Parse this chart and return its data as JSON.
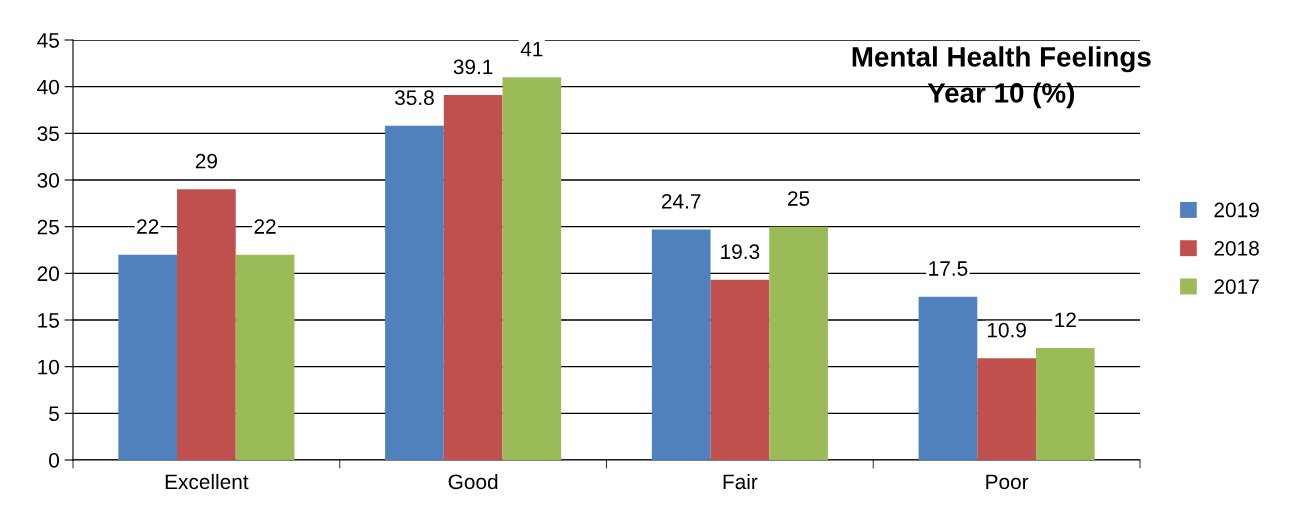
{
  "chart_data": {
    "type": "bar",
    "title": "Mental Health Feelings\nYear 10 (%)",
    "categories": [
      "Excellent",
      "Good",
      "Fair",
      "Poor"
    ],
    "series": [
      {
        "name": "2019",
        "color": "#4f81bd",
        "values": [
          22,
          35.8,
          24.7,
          17.5
        ]
      },
      {
        "name": "2018",
        "color": "#c0504d",
        "values": [
          29,
          39.1,
          19.3,
          10.9
        ]
      },
      {
        "name": "2017",
        "color": "#9bbb59",
        "values": [
          22,
          41,
          25,
          12
        ]
      }
    ],
    "ylim": [
      0,
      45
    ],
    "yticks": [
      0,
      5,
      10,
      15,
      20,
      25,
      30,
      35,
      40,
      45
    ],
    "grid": "y",
    "legend": "right",
    "data_labels": true
  }
}
